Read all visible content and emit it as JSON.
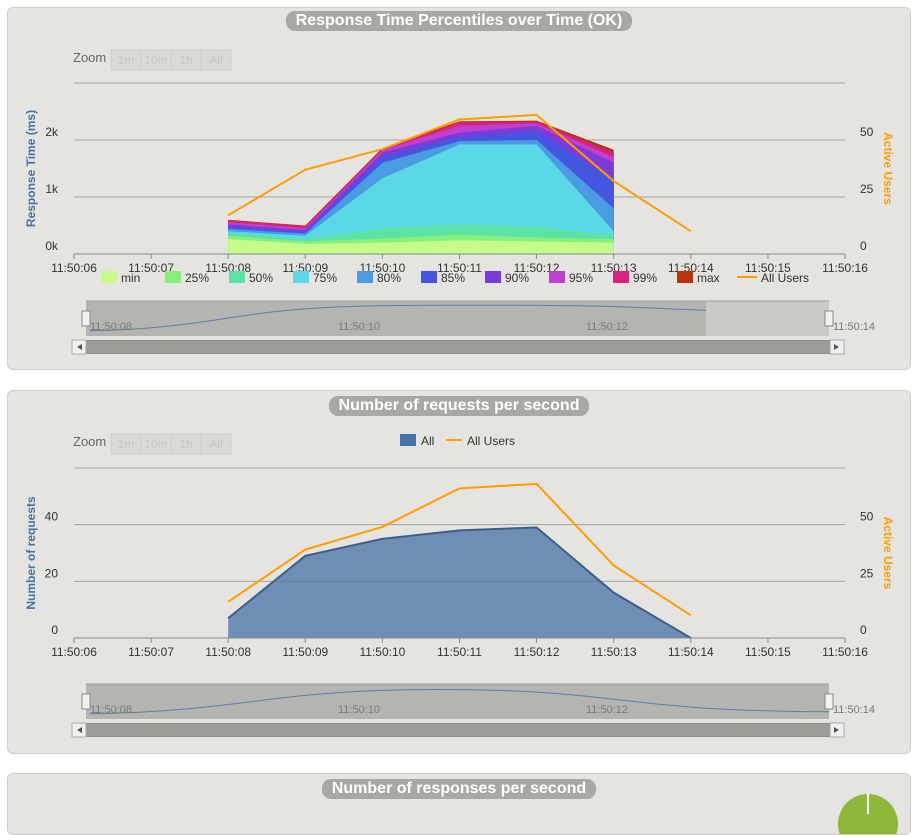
{
  "colors": {
    "panel_bg": "#e5e4e0",
    "axis_label_left": "#4572a7",
    "axis_label_right": "#ff9d00",
    "users_line": "#ff9d00",
    "requests_fill": "#4572a7"
  },
  "zoom": {
    "label": "Zoom",
    "buttons": [
      "1m",
      "10m",
      "1h",
      "All"
    ]
  },
  "chart_data": [
    {
      "type": "area",
      "title": "Response Time Percentiles over Time (OK)",
      "ylabel": "Response Time (ms)",
      "y2label": "Active Users",
      "x": [
        "11:50:06",
        "11:50:07",
        "11:50:08",
        "11:50:09",
        "11:50:10",
        "11:50:11",
        "11:50:12",
        "11:50:13",
        "11:50:14",
        "11:50:15",
        "11:50:16"
      ],
      "yticks": [
        "0k",
        "1k",
        "2k"
      ],
      "y2ticks": [
        "0",
        "25",
        "50"
      ],
      "ylim": [
        0,
        3000
      ],
      "y2lim": [
        0,
        75
      ],
      "legend_position": "bottom",
      "series": [
        {
          "name": "min",
          "color": "#c6fb89",
          "values": [
            null,
            null,
            260,
            180,
            200,
            240,
            220,
            200,
            null,
            null,
            null
          ]
        },
        {
          "name": "25%",
          "color": "#88f07a",
          "values": [
            null,
            null,
            320,
            220,
            270,
            340,
            290,
            260,
            null,
            null,
            null
          ]
        },
        {
          "name": "50%",
          "color": "#5be3a6",
          "values": [
            null,
            null,
            370,
            260,
            450,
            520,
            480,
            330,
            null,
            null,
            null
          ]
        },
        {
          "name": "75%",
          "color": "#5ad8e6",
          "values": [
            null,
            null,
            400,
            320,
            1330,
            1920,
            1920,
            400,
            null,
            null,
            null
          ]
        },
        {
          "name": "80%",
          "color": "#4a9be2",
          "values": [
            null,
            null,
            440,
            360,
            1600,
            1980,
            2000,
            800,
            null,
            null,
            null
          ]
        },
        {
          "name": "85%",
          "color": "#4455e0",
          "values": [
            null,
            null,
            480,
            390,
            1700,
            2050,
            2150,
            1300,
            null,
            null,
            null
          ]
        },
        {
          "name": "90%",
          "color": "#7a3bd9",
          "values": [
            null,
            null,
            520,
            420,
            1780,
            2130,
            2250,
            1600,
            null,
            null,
            null
          ]
        },
        {
          "name": "95%",
          "color": "#c03ed0",
          "values": [
            null,
            null,
            560,
            450,
            1820,
            2250,
            2290,
            1700,
            null,
            null,
            null
          ]
        },
        {
          "name": "99%",
          "color": "#d7237f",
          "values": [
            null,
            null,
            590,
            490,
            1840,
            2310,
            2320,
            1780,
            null,
            null,
            null
          ]
        },
        {
          "name": "max",
          "color": "#b8340c",
          "values": [
            null,
            null,
            600,
            500,
            1860,
            2330,
            2340,
            1830,
            null,
            null,
            null
          ]
        }
      ],
      "users": {
        "name": "All Users",
        "values": [
          null,
          null,
          17,
          37,
          46,
          59,
          61,
          32,
          10,
          null,
          null
        ]
      },
      "navigator": {
        "labels": [
          "11:50:08",
          "11:50:10",
          "11:50:12",
          "11:50:14"
        ]
      }
    },
    {
      "type": "area",
      "title": "Number of requests per second",
      "ylabel": "Number of requests",
      "y2label": "Active Users",
      "x": [
        "11:50:06",
        "11:50:07",
        "11:50:08",
        "11:50:09",
        "11:50:10",
        "11:50:11",
        "11:50:12",
        "11:50:13",
        "11:50:14",
        "11:50:15",
        "11:50:16"
      ],
      "yticks": [
        "0",
        "20",
        "40"
      ],
      "y2ticks": [
        "0",
        "25",
        "50"
      ],
      "ylim": [
        0,
        60
      ],
      "y2lim": [
        0,
        75
      ],
      "legend_position": "top",
      "series": [
        {
          "name": "All",
          "color": "#4572a7",
          "values": [
            null,
            null,
            7,
            29,
            35,
            38,
            39,
            16,
            0,
            null,
            null
          ]
        }
      ],
      "users": {
        "name": "All Users",
        "values": [
          null,
          null,
          16,
          39,
          49,
          66,
          68,
          32,
          10,
          null,
          null
        ]
      },
      "navigator": {
        "labels": [
          "11:50:08",
          "11:50:10",
          "11:50:12",
          "11:50:14"
        ]
      }
    },
    {
      "type": "area",
      "title": "Number of responses per second"
    }
  ]
}
